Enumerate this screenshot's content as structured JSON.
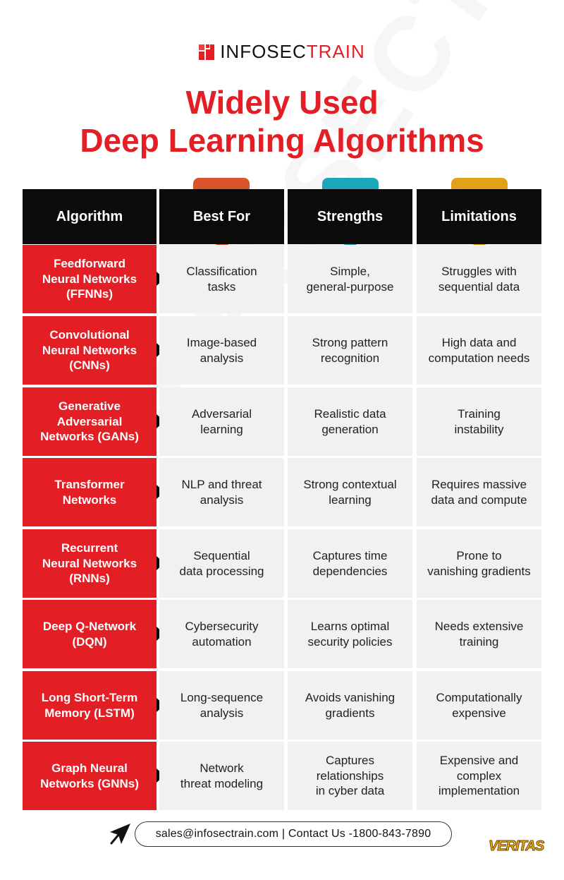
{
  "brand": {
    "name_part1": "INFOSEC",
    "name_part2": "TRAIN"
  },
  "title": {
    "line1": "Widely Used",
    "line2": "Deep Learning Algorithms"
  },
  "watermark": "INFOSECTRAIN",
  "headers": {
    "algorithm": "Algorithm",
    "best_for": "Best For",
    "strengths": "Strengths",
    "limitations": "Limitations"
  },
  "colors": {
    "brand_red": "#e31e24",
    "tab_best_for": "#d9532b",
    "tab_strengths": "#1ba6b9",
    "tab_limitations": "#e3a11a",
    "header_black": "#0b0b0b",
    "cell_gray": "#f1f1f2"
  },
  "rows": [
    {
      "algorithm": "Feedforward\nNeural Networks\n(FFNNs)",
      "best_for": "Classification\ntasks",
      "strengths": "Simple,\ngeneral-purpose",
      "limitations": "Struggles with\nsequential data"
    },
    {
      "algorithm": "Convolutional\nNeural Networks\n(CNNs)",
      "best_for": "Image-based\nanalysis",
      "strengths": "Strong pattern\nrecognition",
      "limitations": "High data and\ncomputation needs"
    },
    {
      "algorithm": "Generative\nAdversarial\nNetworks (GANs)",
      "best_for": "Adversarial\nlearning",
      "strengths": "Realistic data\ngeneration",
      "limitations": "Training\ninstability"
    },
    {
      "algorithm": "Transformer\nNetworks",
      "best_for": "NLP and threat\nanalysis",
      "strengths": "Strong contextual\nlearning",
      "limitations": "Requires massive\ndata and compute"
    },
    {
      "algorithm": "Recurrent\nNeural Networks\n(RNNs)",
      "best_for": "Sequential\ndata processing",
      "strengths": "Captures time\ndependencies",
      "limitations": "Prone to\nvanishing gradients"
    },
    {
      "algorithm": "Deep Q-Network\n(DQN)",
      "best_for": "Cybersecurity\nautomation",
      "strengths": "Learns optimal\nsecurity policies",
      "limitations": "Needs extensive\ntraining"
    },
    {
      "algorithm": "Long Short-Term\nMemory (LSTM)",
      "best_for": "Long-sequence\nanalysis",
      "strengths": "Avoids vanishing\ngradients",
      "limitations": "Computationally\nexpensive"
    },
    {
      "algorithm": "Graph Neural\nNetworks (GNNs)",
      "best_for": "Network\nthreat modeling",
      "strengths": "Captures\nrelationships\nin cyber data",
      "limitations": "Expensive and\ncomplex\nimplementation"
    }
  ],
  "footer": {
    "contact": "sales@infosectrain.com | Contact Us -1800-843-7890",
    "partner_logo": "VERITAS"
  },
  "icons": {
    "brand_logo": "pixel-grid-icon",
    "cursor": "cursor-arrow-icon"
  }
}
